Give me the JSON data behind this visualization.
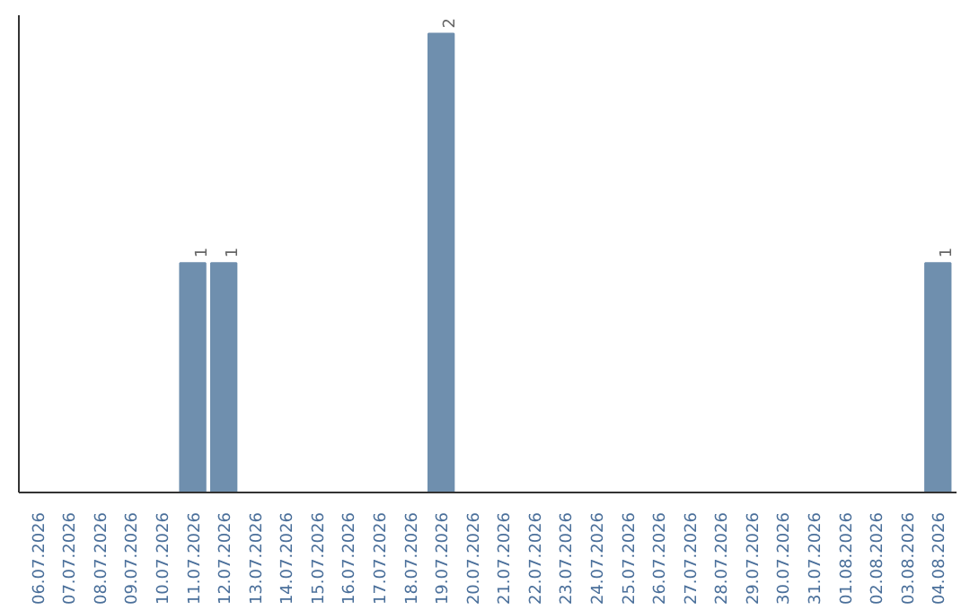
{
  "chart_data": {
    "type": "bar",
    "categories": [
      "06.07.2026",
      "07.07.2026",
      "08.07.2026",
      "09.07.2026",
      "10.07.2026",
      "11.07.2026",
      "12.07.2026",
      "13.07.2026",
      "14.07.2026",
      "15.07.2026",
      "16.07.2026",
      "17.07.2026",
      "18.07.2026",
      "19.07.2026",
      "20.07.2026",
      "21.07.2026",
      "22.07.2026",
      "23.07.2026",
      "24.07.2026",
      "25.07.2026",
      "26.07.2026",
      "27.07.2026",
      "28.07.2026",
      "29.07.2026",
      "30.07.2026",
      "31.07.2026",
      "01.08.2026",
      "02.08.2026",
      "03.08.2026",
      "04.08.2026"
    ],
    "values": [
      0,
      0,
      0,
      0,
      0,
      1,
      1,
      0,
      0,
      0,
      0,
      0,
      0,
      2,
      0,
      0,
      0,
      0,
      0,
      0,
      0,
      0,
      0,
      0,
      0,
      0,
      0,
      0,
      0,
      1
    ],
    "value_labels": [
      null,
      null,
      null,
      null,
      null,
      "1",
      "1",
      null,
      null,
      null,
      null,
      null,
      null,
      "2",
      null,
      null,
      null,
      null,
      null,
      null,
      null,
      null,
      null,
      null,
      null,
      null,
      null,
      null,
      null,
      "1"
    ],
    "color": "#6f8fae"
  }
}
